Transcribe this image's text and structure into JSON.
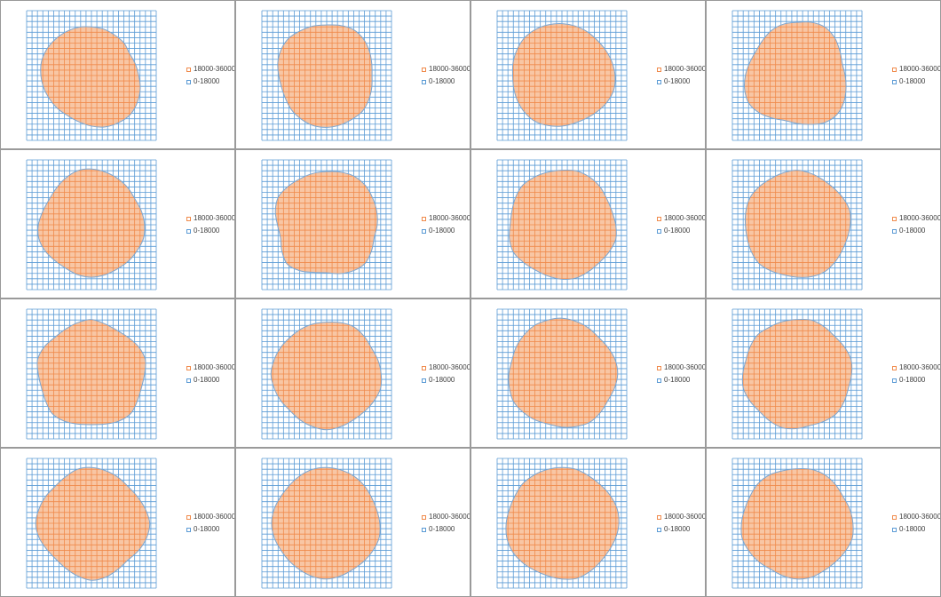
{
  "colors": {
    "high_fill": "#F8C6A4",
    "high_line": "#F08A4B",
    "low_line": "#5B9BD5",
    "outline": "#7FA7D0"
  },
  "legend": {
    "high_label": "18000-36000",
    "low_label": "0-18000"
  },
  "chart_data": [
    {
      "type": "heatmap",
      "subtype": "surface-contour",
      "grid": true,
      "legend_position": "right",
      "bands": [
        "18000-36000",
        "0-18000"
      ],
      "radii": [
        0.75,
        0.74,
        0.72,
        0.71,
        0.68,
        0.7,
        0.73,
        0.78,
        0.82,
        0.85,
        0.84,
        0.82,
        0.78,
        0.74,
        0.72,
        0.73,
        0.74,
        0.76,
        0.78,
        0.8,
        0.8,
        0.79,
        0.78,
        0.77
      ]
    },
    {
      "type": "heatmap",
      "subtype": "surface-contour",
      "grid": true,
      "legend_position": "right",
      "bands": [
        "18000-36000",
        "0-18000"
      ],
      "radii": [
        0.78,
        0.8,
        0.82,
        0.8,
        0.76,
        0.72,
        0.7,
        0.72,
        0.75,
        0.78,
        0.78,
        0.79,
        0.8,
        0.8,
        0.78,
        0.76,
        0.73,
        0.72,
        0.74,
        0.78,
        0.81,
        0.82,
        0.8,
        0.79
      ]
    },
    {
      "type": "heatmap",
      "subtype": "surface-contour",
      "grid": true,
      "legend_position": "right",
      "bands": [
        "18000-36000",
        "0-18000"
      ],
      "radii": [
        0.8,
        0.79,
        0.78,
        0.77,
        0.78,
        0.8,
        0.82,
        0.83,
        0.81,
        0.78,
        0.76,
        0.76,
        0.78,
        0.8,
        0.82,
        0.81,
        0.79,
        0.77,
        0.76,
        0.78,
        0.8,
        0.82,
        0.82,
        0.81
      ]
    },
    {
      "type": "heatmap",
      "subtype": "surface-contour",
      "grid": true,
      "legend_position": "right",
      "bands": [
        "18000-36000",
        "0-18000"
      ],
      "radii": [
        0.82,
        0.85,
        0.86,
        0.82,
        0.76,
        0.72,
        0.74,
        0.78,
        0.83,
        0.86,
        0.84,
        0.78,
        0.74,
        0.72,
        0.76,
        0.82,
        0.86,
        0.84,
        0.8,
        0.76,
        0.74,
        0.76,
        0.8,
        0.82
      ]
    },
    {
      "type": "heatmap",
      "subtype": "surface-contour",
      "grid": true,
      "legend_position": "right",
      "bands": [
        "18000-36000",
        "0-18000"
      ],
      "radii": [
        0.86,
        0.84,
        0.82,
        0.8,
        0.78,
        0.8,
        0.82,
        0.83,
        0.81,
        0.8,
        0.79,
        0.8,
        0.81,
        0.8,
        0.78,
        0.79,
        0.82,
        0.84,
        0.82,
        0.78,
        0.76,
        0.78,
        0.82,
        0.86
      ]
    },
    {
      "type": "heatmap",
      "subtype": "surface-contour",
      "grid": true,
      "legend_position": "right",
      "bands": [
        "18000-36000",
        "0-18000"
      ],
      "radii": [
        0.82,
        0.84,
        0.86,
        0.85,
        0.82,
        0.8,
        0.78,
        0.76,
        0.8,
        0.84,
        0.82,
        0.78,
        0.74,
        0.76,
        0.82,
        0.86,
        0.8,
        0.74,
        0.76,
        0.82,
        0.86,
        0.84,
        0.82,
        0.82
      ]
    },
    {
      "type": "heatmap",
      "subtype": "surface-contour",
      "grid": true,
      "legend_position": "right",
      "bands": [
        "18000-36000",
        "0-18000"
      ],
      "radii": [
        0.84,
        0.86,
        0.85,
        0.83,
        0.8,
        0.8,
        0.83,
        0.86,
        0.84,
        0.82,
        0.83,
        0.85,
        0.84,
        0.82,
        0.81,
        0.83,
        0.86,
        0.84,
        0.8,
        0.8,
        0.83,
        0.86,
        0.85,
        0.84
      ]
    },
    {
      "type": "heatmap",
      "subtype": "surface-contour",
      "grid": true,
      "legend_position": "right",
      "bands": [
        "18000-36000",
        "0-18000"
      ],
      "radii": [
        0.84,
        0.82,
        0.8,
        0.8,
        0.82,
        0.84,
        0.82,
        0.8,
        0.8,
        0.82,
        0.84,
        0.83,
        0.81,
        0.8,
        0.82,
        0.84,
        0.82,
        0.8,
        0.8,
        0.82,
        0.84,
        0.83,
        0.82,
        0.83
      ]
    },
    {
      "type": "heatmap",
      "subtype": "surface-contour",
      "grid": true,
      "legend_position": "right",
      "bands": [
        "18000-36000",
        "0-18000"
      ],
      "radii": [
        0.84,
        0.8,
        0.78,
        0.8,
        0.84,
        0.86,
        0.82,
        0.8,
        0.82,
        0.86,
        0.84,
        0.8,
        0.78,
        0.8,
        0.84,
        0.86,
        0.82,
        0.8,
        0.82,
        0.86,
        0.84,
        0.8,
        0.8,
        0.82
      ]
    },
    {
      "type": "heatmap",
      "subtype": "surface-contour",
      "grid": true,
      "legend_position": "right",
      "bands": [
        "18000-36000",
        "0-18000"
      ],
      "radii": [
        0.8,
        0.82,
        0.84,
        0.82,
        0.8,
        0.82,
        0.84,
        0.86,
        0.84,
        0.82,
        0.82,
        0.84,
        0.86,
        0.84,
        0.82,
        0.8,
        0.82,
        0.84,
        0.86,
        0.84,
        0.82,
        0.8,
        0.8,
        0.8
      ]
    },
    {
      "type": "heatmap",
      "subtype": "surface-contour",
      "grid": true,
      "legend_position": "right",
      "bands": [
        "18000-36000",
        "0-18000"
      ],
      "radii": [
        0.86,
        0.84,
        0.82,
        0.8,
        0.82,
        0.85,
        0.86,
        0.84,
        0.82,
        0.84,
        0.86,
        0.84,
        0.82,
        0.8,
        0.82,
        0.84,
        0.86,
        0.84,
        0.82,
        0.8,
        0.82,
        0.84,
        0.86,
        0.86
      ]
    },
    {
      "type": "heatmap",
      "subtype": "surface-contour",
      "grid": true,
      "legend_position": "right",
      "bands": [
        "18000-36000",
        "0-18000"
      ],
      "radii": [
        0.84,
        0.86,
        0.84,
        0.82,
        0.84,
        0.86,
        0.84,
        0.82,
        0.84,
        0.86,
        0.84,
        0.82,
        0.84,
        0.86,
        0.84,
        0.82,
        0.84,
        0.86,
        0.84,
        0.82,
        0.84,
        0.86,
        0.84,
        0.84
      ]
    },
    {
      "type": "heatmap",
      "subtype": "surface-contour",
      "grid": true,
      "legend_position": "right",
      "bands": [
        "18000-36000",
        "0-18000"
      ],
      "radii": [
        0.86,
        0.84,
        0.82,
        0.8,
        0.82,
        0.86,
        0.9,
        0.88,
        0.84,
        0.8,
        0.82,
        0.86,
        0.88,
        0.84,
        0.8,
        0.78,
        0.8,
        0.84,
        0.86,
        0.84,
        0.82,
        0.8,
        0.82,
        0.86
      ]
    },
    {
      "type": "heatmap",
      "subtype": "surface-contour",
      "grid": true,
      "legend_position": "right",
      "bands": [
        "18000-36000",
        "0-18000"
      ],
      "radii": [
        0.86,
        0.85,
        0.84,
        0.82,
        0.8,
        0.8,
        0.82,
        0.84,
        0.83,
        0.82,
        0.82,
        0.84,
        0.86,
        0.85,
        0.83,
        0.82,
        0.82,
        0.84,
        0.85,
        0.84,
        0.82,
        0.82,
        0.84,
        0.86
      ]
    },
    {
      "type": "heatmap",
      "subtype": "surface-contour",
      "grid": true,
      "legend_position": "right",
      "bands": [
        "18000-36000",
        "0-18000"
      ],
      "radii": [
        0.86,
        0.86,
        0.84,
        0.84,
        0.86,
        0.88,
        0.88,
        0.86,
        0.84,
        0.84,
        0.86,
        0.88,
        0.86,
        0.84,
        0.84,
        0.86,
        0.88,
        0.88,
        0.86,
        0.84,
        0.84,
        0.86,
        0.86,
        0.86
      ]
    },
    {
      "type": "heatmap",
      "subtype": "surface-contour",
      "grid": true,
      "legend_position": "right",
      "bands": [
        "18000-36000",
        "0-18000"
      ],
      "radii": [
        0.84,
        0.86,
        0.86,
        0.84,
        0.82,
        0.84,
        0.86,
        0.88,
        0.86,
        0.84,
        0.84,
        0.86,
        0.86,
        0.84,
        0.82,
        0.84,
        0.86,
        0.88,
        0.86,
        0.84,
        0.84,
        0.86,
        0.86,
        0.84
      ]
    }
  ]
}
